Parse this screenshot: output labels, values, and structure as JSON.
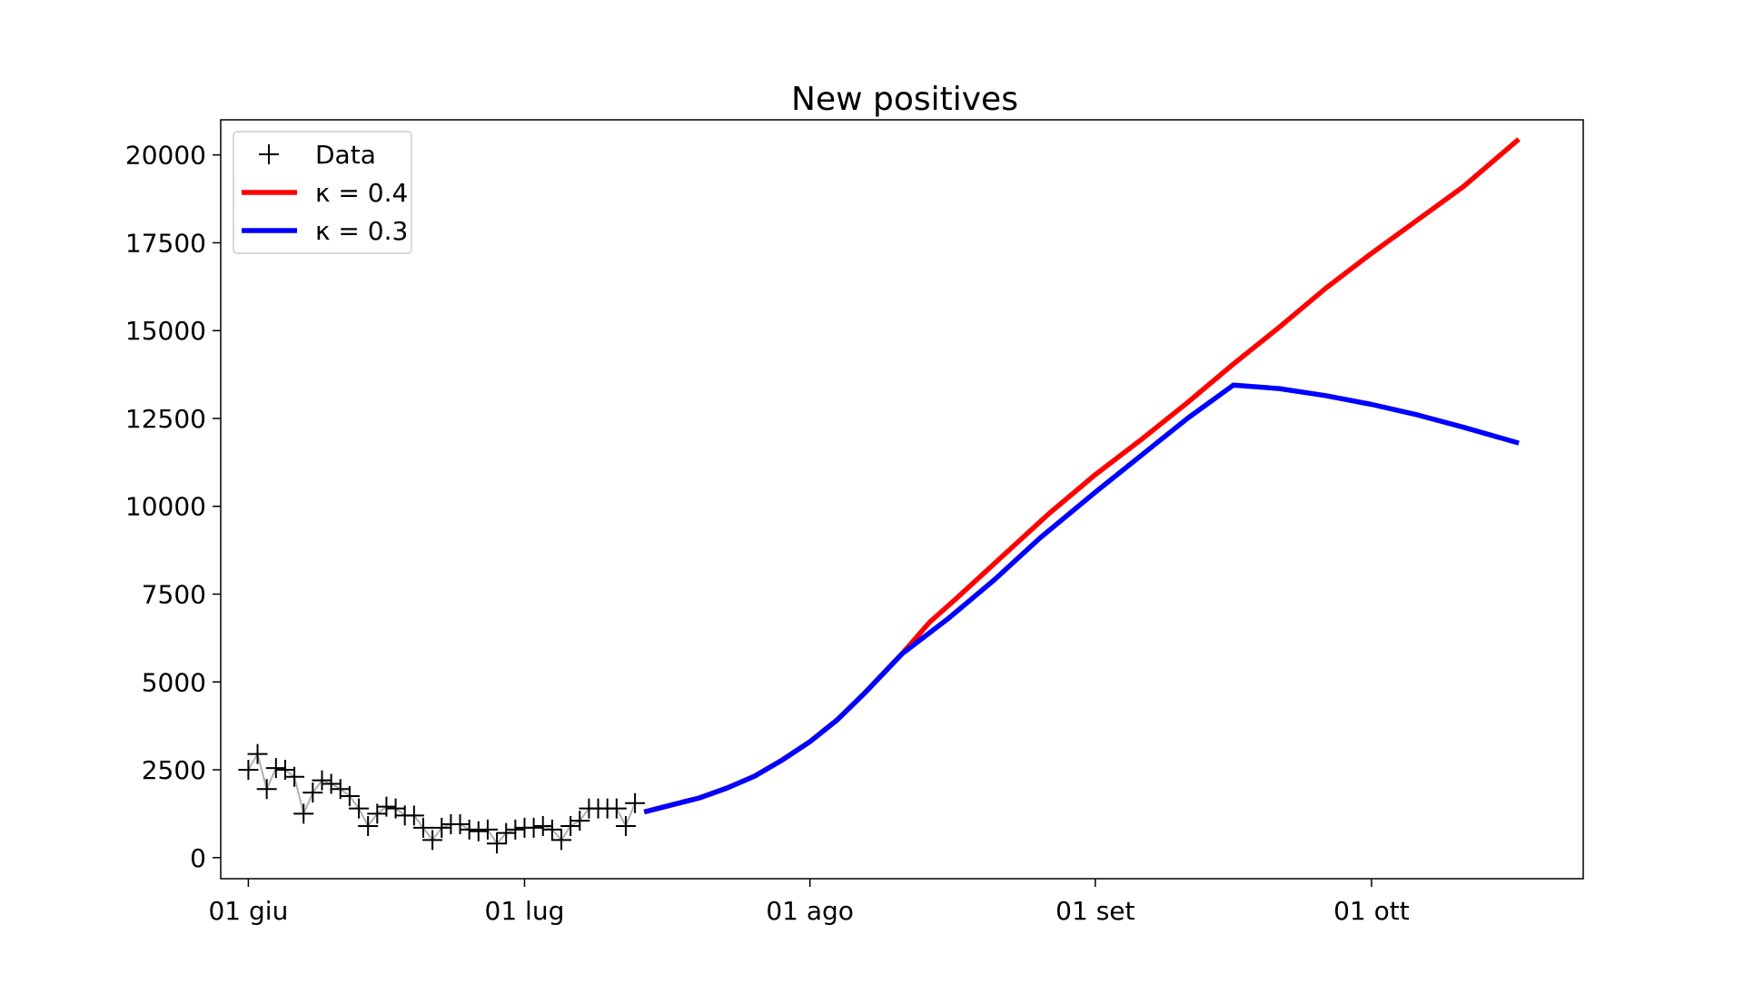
{
  "chart_data": {
    "type": "line",
    "title": "New positives",
    "xlabel": "",
    "ylabel": "",
    "x_axis": {
      "type": "date",
      "range": [
        "2020-05-29",
        "2020-10-24"
      ],
      "ticks": [
        {
          "date": "2020-06-01",
          "label": "01 giu"
        },
        {
          "date": "2020-07-01",
          "label": "01 lug"
        },
        {
          "date": "2020-08-01",
          "label": "01 ago"
        },
        {
          "date": "2020-09-01",
          "label": "01 set"
        },
        {
          "date": "2020-10-01",
          "label": "01 ott"
        }
      ]
    },
    "y_axis": {
      "range": [
        -600,
        21000
      ],
      "ticks": [
        0,
        2500,
        5000,
        7500,
        10000,
        12500,
        15000,
        17500,
        20000
      ]
    },
    "grid": false,
    "legend": {
      "position": "top-left",
      "entries": [
        {
          "label": "Data",
          "marker": "+",
          "color": "#000000"
        },
        {
          "label": "κ = 0.4",
          "color": "#ff0000"
        },
        {
          "label": "κ = 0.3",
          "color": "#0000ff"
        }
      ]
    },
    "series": [
      {
        "name": "Data",
        "style": "markers",
        "color": "#000000",
        "connector_color": "#b0b0b0",
        "points": [
          [
            "2020-06-01",
            2500
          ],
          [
            "2020-06-02",
            2950
          ],
          [
            "2020-06-03",
            1950
          ],
          [
            "2020-06-04",
            2550
          ],
          [
            "2020-06-05",
            2500
          ],
          [
            "2020-06-06",
            2300
          ],
          [
            "2020-06-07",
            1250
          ],
          [
            "2020-06-08",
            1850
          ],
          [
            "2020-06-09",
            2200
          ],
          [
            "2020-06-10",
            2100
          ],
          [
            "2020-06-11",
            1950
          ],
          [
            "2020-06-12",
            1750
          ],
          [
            "2020-06-13",
            1400
          ],
          [
            "2020-06-14",
            900
          ],
          [
            "2020-06-15",
            1250
          ],
          [
            "2020-06-16",
            1450
          ],
          [
            "2020-06-17",
            1400
          ],
          [
            "2020-06-18",
            1200
          ],
          [
            "2020-06-19",
            1200
          ],
          [
            "2020-06-20",
            850
          ],
          [
            "2020-06-21",
            500
          ],
          [
            "2020-06-22",
            850
          ],
          [
            "2020-06-23",
            950
          ],
          [
            "2020-06-24",
            950
          ],
          [
            "2020-06-25",
            800
          ],
          [
            "2020-06-26",
            750
          ],
          [
            "2020-06-27",
            800
          ],
          [
            "2020-06-28",
            400
          ],
          [
            "2020-06-29",
            700
          ],
          [
            "2020-06-30",
            800
          ],
          [
            "2020-07-01",
            850
          ],
          [
            "2020-07-02",
            850
          ],
          [
            "2020-07-03",
            900
          ],
          [
            "2020-07-04",
            800
          ],
          [
            "2020-07-05",
            500
          ],
          [
            "2020-07-06",
            900
          ],
          [
            "2020-07-07",
            1050
          ],
          [
            "2020-07-08",
            1400
          ],
          [
            "2020-07-09",
            1400
          ],
          [
            "2020-07-10",
            1400
          ],
          [
            "2020-07-11",
            1400
          ],
          [
            "2020-07-12",
            900
          ],
          [
            "2020-07-13",
            1550
          ]
        ]
      },
      {
        "name": "κ = 0.4",
        "style": "line",
        "color": "#ff0000",
        "points": [
          [
            "2020-07-14",
            1300
          ],
          [
            "2020-07-17",
            1500
          ],
          [
            "2020-07-20",
            1700
          ],
          [
            "2020-07-23",
            1980
          ],
          [
            "2020-07-26",
            2320
          ],
          [
            "2020-07-29",
            2780
          ],
          [
            "2020-08-01",
            3300
          ],
          [
            "2020-08-04",
            3930
          ],
          [
            "2020-08-07",
            4700
          ],
          [
            "2020-08-11",
            5800
          ],
          [
            "2020-08-14",
            6700
          ],
          [
            "2020-08-17",
            7400
          ],
          [
            "2020-08-22",
            8600
          ],
          [
            "2020-08-27",
            9800
          ],
          [
            "2020-09-01",
            10900
          ],
          [
            "2020-09-06",
            11900
          ],
          [
            "2020-09-11",
            12950
          ],
          [
            "2020-09-16",
            14050
          ],
          [
            "2020-09-21",
            15100
          ],
          [
            "2020-09-26",
            16200
          ],
          [
            "2020-10-01",
            17200
          ],
          [
            "2020-10-06",
            18150
          ],
          [
            "2020-10-11",
            19100
          ],
          [
            "2020-10-17",
            20450
          ]
        ]
      },
      {
        "name": "κ = 0.3",
        "style": "line",
        "color": "#0000ff",
        "points": [
          [
            "2020-07-14",
            1300
          ],
          [
            "2020-07-17",
            1500
          ],
          [
            "2020-07-20",
            1700
          ],
          [
            "2020-07-23",
            1980
          ],
          [
            "2020-07-26",
            2320
          ],
          [
            "2020-07-29",
            2780
          ],
          [
            "2020-08-01",
            3300
          ],
          [
            "2020-08-04",
            3930
          ],
          [
            "2020-08-07",
            4700
          ],
          [
            "2020-08-11",
            5800
          ],
          [
            "2020-08-16",
            6800
          ],
          [
            "2020-08-21",
            7900
          ],
          [
            "2020-08-26",
            9100
          ],
          [
            "2020-09-01",
            10400
          ],
          [
            "2020-09-06",
            11450
          ],
          [
            "2020-09-11",
            12500
          ],
          [
            "2020-09-16",
            13450
          ],
          [
            "2020-09-21",
            13350
          ],
          [
            "2020-09-26",
            13150
          ],
          [
            "2020-10-01",
            12900
          ],
          [
            "2020-10-06",
            12600
          ],
          [
            "2020-10-11",
            12250
          ],
          [
            "2020-10-17",
            11800
          ]
        ]
      }
    ]
  }
}
